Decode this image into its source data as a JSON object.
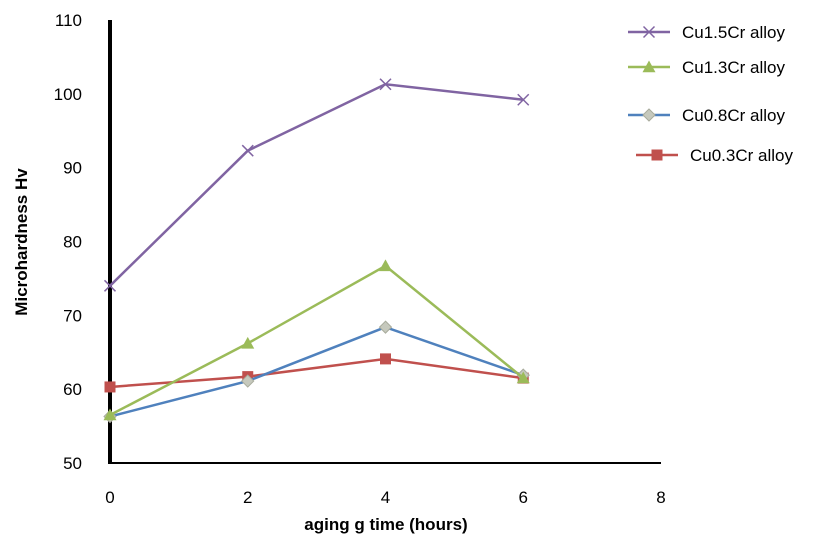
{
  "chart_data": {
    "type": "line",
    "xlabel": "aging g time (hours)",
    "ylabel": "Microhardness    Hv",
    "xlim": [
      0,
      8
    ],
    "ylim": [
      50,
      110
    ],
    "x_ticks": [
      0,
      2,
      4,
      6,
      8
    ],
    "y_ticks": [
      50,
      60,
      70,
      80,
      90,
      100,
      110
    ],
    "grid": false,
    "legend_position": "top-right",
    "x": [
      0,
      2,
      4,
      6
    ],
    "series": [
      {
        "name": "Cu1.5Cr alloy",
        "values": [
          74.0,
          92.3,
          101.3,
          99.2
        ],
        "color": "#8064a2",
        "marker": "x"
      },
      {
        "name": "Cu1.3Cr alloy",
        "values": [
          56.5,
          66.2,
          76.7,
          61.5
        ],
        "color": "#9bbb59",
        "marker": "triangle"
      },
      {
        "name": "Cu0.8Cr alloy",
        "values": [
          56.3,
          61.1,
          68.4,
          61.9
        ],
        "color": "#4f81bd",
        "marker": "diamond"
      },
      {
        "name": "Cu0.3Cr alloy",
        "values": [
          60.3,
          61.7,
          64.1,
          61.5
        ],
        "color": "#c0504d",
        "marker": "square"
      }
    ]
  }
}
